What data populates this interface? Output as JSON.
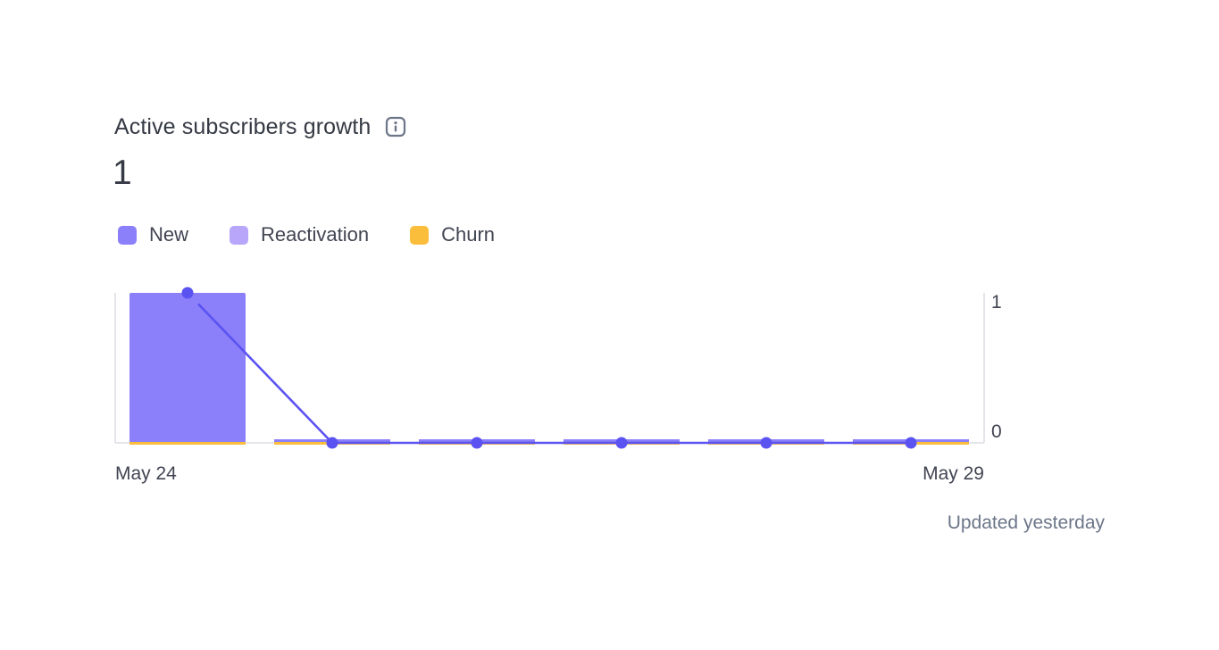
{
  "header": {
    "title": "Active subscribers growth",
    "info_icon": "info-icon",
    "value": "1"
  },
  "legend": [
    {
      "label": "New",
      "color": "#8b80f9"
    },
    {
      "label": "Reactivation",
      "color": "#b8a6fb"
    },
    {
      "label": "Churn",
      "color": "#fbbe3c"
    }
  ],
  "colors": {
    "line": "#5b52f2",
    "text": "#353a44",
    "muted": "#6c7688",
    "axis": "#e3e5ea"
  },
  "footer": {
    "updated": "Updated yesterday"
  },
  "chart_data": {
    "type": "bar",
    "categories": [
      "May 24",
      "May 25",
      "May 26",
      "May 27",
      "May 28",
      "May 29"
    ],
    "series": [
      {
        "name": "New",
        "values": [
          1,
          0,
          0,
          0,
          0,
          0
        ]
      },
      {
        "name": "Reactivation",
        "values": [
          0,
          0,
          0,
          0,
          0,
          0
        ]
      },
      {
        "name": "Churn",
        "values": [
          0,
          0,
          0,
          0,
          0,
          0
        ]
      }
    ],
    "line_values": [
      1,
      0,
      0,
      0,
      0,
      0
    ],
    "x_tick_labels": [
      "May 24",
      "May 29"
    ],
    "y_ticks": [
      0,
      1
    ],
    "ylim": [
      0,
      1
    ],
    "grid": false,
    "legend_position": "top-left"
  }
}
